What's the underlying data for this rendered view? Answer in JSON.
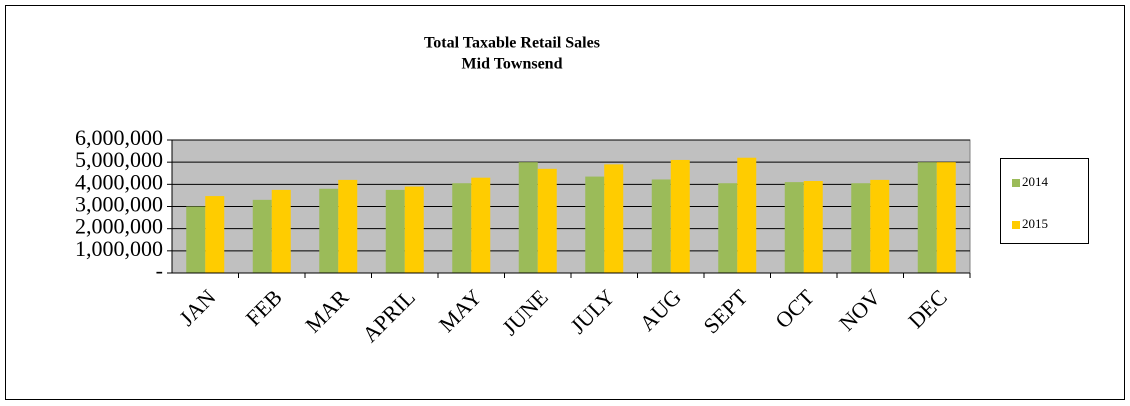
{
  "chart_data": {
    "type": "bar",
    "title": "Total Taxable Retail Sales",
    "subtitle": "Mid Townsend",
    "categories": [
      "JAN",
      "FEB",
      "MAR",
      "APRIL",
      "MAY",
      "JUNE",
      "JULY",
      "AUG",
      "SEPT",
      "OCT",
      "NOV",
      "DEC"
    ],
    "series": [
      {
        "name": "2014",
        "color": "#9bbb59",
        "values": [
          3000000,
          3300000,
          3800000,
          3750000,
          4050000,
          5000000,
          4350000,
          4220000,
          4050000,
          4100000,
          4050000,
          5000000
        ]
      },
      {
        "name": "2015",
        "color": "#ffcc00",
        "values": [
          3470000,
          3750000,
          4200000,
          3900000,
          4300000,
          4700000,
          4900000,
          5100000,
          5200000,
          4150000,
          4200000,
          5000000
        ]
      }
    ],
    "ylim": [
      0,
      6000000
    ],
    "yticks": [
      {
        "value": 0,
        "label": "-"
      },
      {
        "value": 1000000,
        "label": "1,000,000"
      },
      {
        "value": 2000000,
        "label": "2,000,000"
      },
      {
        "value": 3000000,
        "label": "3,000,000"
      },
      {
        "value": 4000000,
        "label": "4,000,000"
      },
      {
        "value": 5000000,
        "label": "5,000,000"
      },
      {
        "value": 6000000,
        "label": "6,000,000"
      }
    ],
    "grid": true,
    "legend": "right"
  }
}
